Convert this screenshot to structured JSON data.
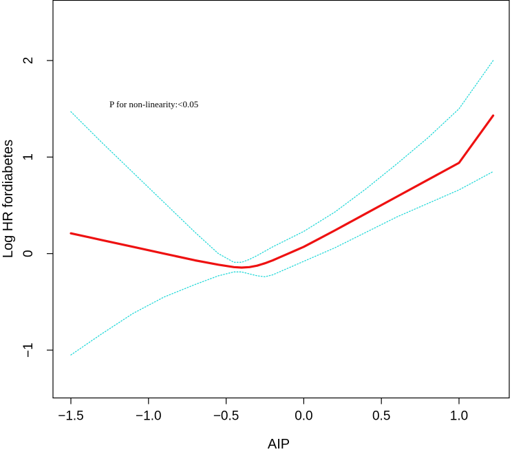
{
  "chart_data": {
    "type": "line",
    "title": "",
    "xlabel": "AIP",
    "ylabel": "Log HR fordiabetes",
    "annotation": "P for non-linearity:<0.05",
    "xlim": [
      -1.6,
      1.25
    ],
    "ylim": [
      -1.5,
      2.5
    ],
    "x_ticks": [
      -1.5,
      -1.0,
      -0.5,
      0.0,
      0.5,
      1.0
    ],
    "x_tick_labels": [
      "−1.5",
      "−1.0",
      "−0.5",
      "0.0",
      "0.5",
      "1.0"
    ],
    "y_ticks": [
      -1,
      0,
      1,
      2
    ],
    "y_tick_labels": [
      "−1",
      "0",
      "1",
      "2"
    ],
    "grid": false,
    "colors": {
      "estimate": "#ee1111",
      "ci": "#22d8d8",
      "axis": "#000000"
    },
    "series": [
      {
        "role": "estimate",
        "style": "solid",
        "x": [
          -1.5,
          -1.3,
          -1.1,
          -0.9,
          -0.7,
          -0.55,
          -0.45,
          -0.4,
          -0.35,
          -0.3,
          -0.25,
          -0.2,
          -0.15,
          -0.1,
          -0.05,
          0.0,
          0.1,
          0.2,
          0.4,
          0.6,
          0.8,
          1.0,
          1.22
        ],
        "values": [
          0.21,
          0.14,
          0.07,
          0.0,
          -0.07,
          -0.115,
          -0.14,
          -0.145,
          -0.14,
          -0.125,
          -0.1,
          -0.07,
          -0.035,
          0.0,
          0.035,
          0.07,
          0.155,
          0.24,
          0.415,
          0.59,
          0.765,
          0.94,
          1.43
        ]
      },
      {
        "role": "ci_upper",
        "style": "dotted",
        "x": [
          -1.5,
          -1.3,
          -1.1,
          -0.9,
          -0.7,
          -0.55,
          -0.45,
          -0.4,
          -0.35,
          -0.3,
          -0.2,
          -0.1,
          0.0,
          0.2,
          0.4,
          0.6,
          0.8,
          1.0,
          1.22
        ],
        "values": [
          1.47,
          1.15,
          0.84,
          0.53,
          0.22,
          0.0,
          -0.09,
          -0.09,
          -0.06,
          -0.02,
          0.07,
          0.15,
          0.23,
          0.43,
          0.67,
          0.93,
          1.2,
          1.5,
          2.0
        ]
      },
      {
        "role": "ci_lower",
        "style": "dotted",
        "x": [
          -1.5,
          -1.3,
          -1.1,
          -0.9,
          -0.7,
          -0.55,
          -0.45,
          -0.4,
          -0.35,
          -0.3,
          -0.25,
          -0.2,
          -0.1,
          0.0,
          0.2,
          0.4,
          0.6,
          0.8,
          1.0,
          1.22
        ],
        "values": [
          -1.05,
          -0.83,
          -0.62,
          -0.45,
          -0.32,
          -0.23,
          -0.19,
          -0.19,
          -0.21,
          -0.23,
          -0.24,
          -0.22,
          -0.15,
          -0.08,
          0.06,
          0.22,
          0.38,
          0.52,
          0.66,
          0.85
        ]
      }
    ]
  }
}
